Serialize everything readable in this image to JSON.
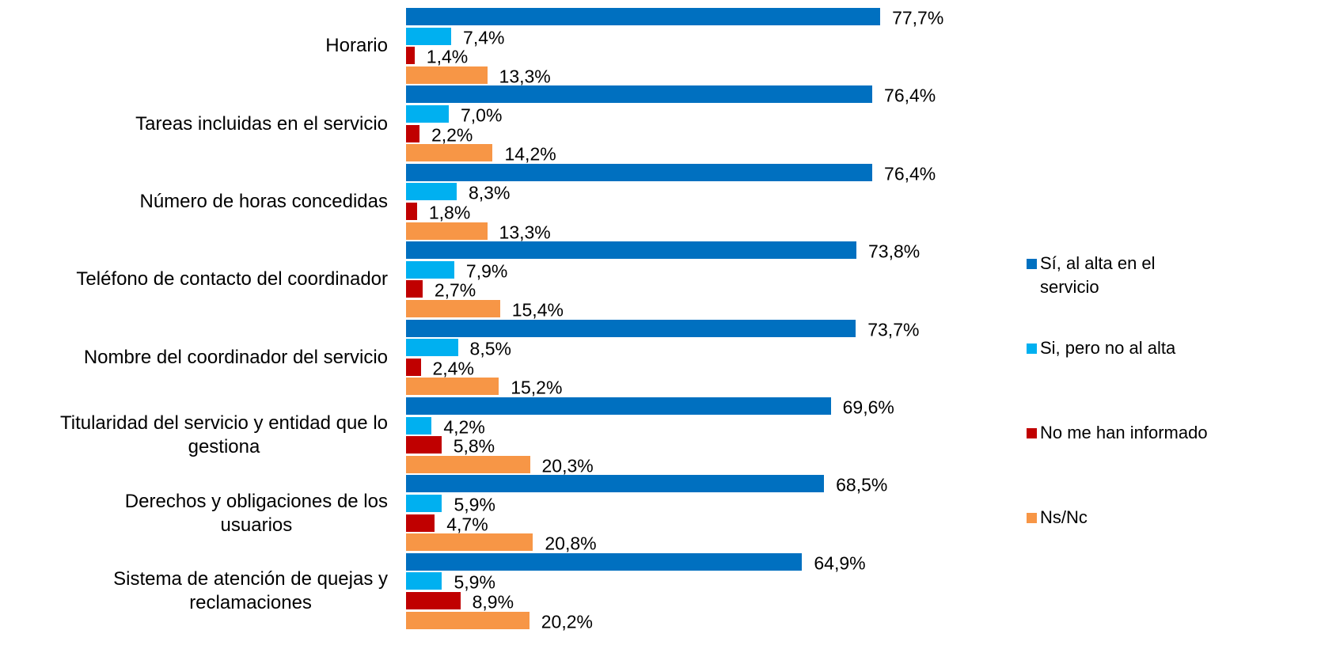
{
  "chart_data": {
    "type": "bar",
    "orientation": "horizontal",
    "categories": [
      "Horario",
      "Tareas incluidas en el servicio",
      "Número de horas concedidas",
      "Teléfono de contacto del coordinador",
      "Nombre del coordinador del servicio",
      "Titularidad del servicio y entidad que lo\ngestiona",
      "Derechos y obligaciones de los\nusuarios",
      "Sistema de atención de quejas y\nreclamaciones"
    ],
    "xlim": [
      0,
      100
    ],
    "legend": "right",
    "series": [
      {
        "name": "Sí, al alta en el\nservicio",
        "color": "#0070c0",
        "values": [
          77.7,
          76.4,
          76.4,
          73.8,
          73.7,
          69.6,
          68.5,
          64.9
        ],
        "value_labels": [
          "77,7%",
          "76,4%",
          "76,4%",
          "73,8%",
          "73,7%",
          "69,6%",
          "68,5%",
          "64,9%"
        ]
      },
      {
        "name": "Si, pero no al alta",
        "color": "#00b0f0",
        "values": [
          7.4,
          7.0,
          8.3,
          7.9,
          8.5,
          4.2,
          5.9,
          5.9
        ],
        "value_labels": [
          "7,4%",
          "7,0%",
          "8,3%",
          "7,9%",
          "8,5%",
          "4,2%",
          "5,9%",
          "5,9%"
        ]
      },
      {
        "name": "No me han informado",
        "color": "#c00000",
        "values": [
          1.4,
          2.2,
          1.8,
          2.7,
          2.4,
          5.8,
          4.7,
          8.9
        ],
        "value_labels": [
          "1,4%",
          "2,2%",
          "1,8%",
          "2,7%",
          "2,4%",
          "5,8%",
          "4,7%",
          "8,9%"
        ]
      },
      {
        "name": "Ns/Nc",
        "color": "#f79646",
        "values": [
          13.3,
          14.2,
          13.3,
          15.4,
          15.2,
          20.3,
          20.8,
          20.2
        ],
        "value_labels": [
          "13,3%",
          "14,2%",
          "13,3%",
          "15,4%",
          "15,2%",
          "20,3%",
          "20,8%",
          "20,2%"
        ]
      }
    ]
  }
}
